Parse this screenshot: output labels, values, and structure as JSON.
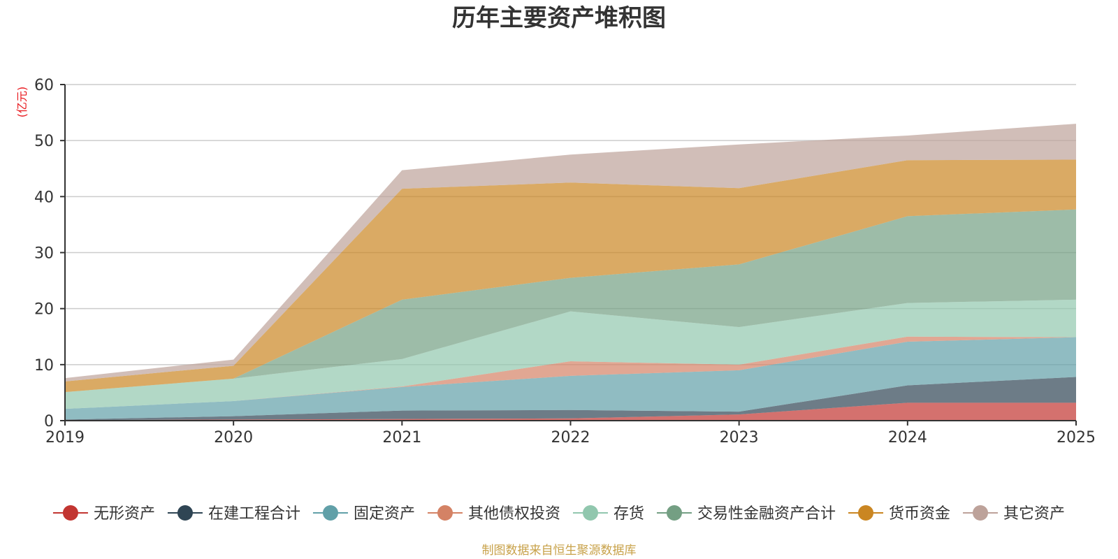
{
  "chart_data": {
    "type": "area",
    "stacked": true,
    "title": "历年主要资产堆积图",
    "ylabel": "(亿元)",
    "xlabel": "",
    "categories": [
      "2019",
      "2020",
      "2021",
      "2022",
      "2023",
      "2024",
      "2025"
    ],
    "ylim": [
      0,
      60
    ],
    "yticks": [
      0,
      10,
      20,
      30,
      40,
      50,
      60
    ],
    "grid": true,
    "legend_position": "bottom",
    "series": [
      {
        "name": "无形资产",
        "color": "#c23531",
        "values": [
          0.1,
          0.2,
          0.3,
          0.4,
          1.1,
          3.2,
          3.2
        ]
      },
      {
        "name": "在建工程合计",
        "color": "#2f4554",
        "values": [
          0.1,
          0.6,
          1.5,
          1.5,
          0.5,
          3.1,
          4.6
        ]
      },
      {
        "name": "固定资产",
        "color": "#61a0a8",
        "values": [
          1.9,
          2.7,
          4.2,
          6.1,
          7.4,
          7.8,
          7.1
        ]
      },
      {
        "name": "其他债权投资",
        "color": "#d48265",
        "values": [
          0.0,
          0.0,
          0.1,
          2.6,
          1.0,
          0.9,
          0.0
        ]
      },
      {
        "name": "存货",
        "color": "#91c7ae",
        "values": [
          3.0,
          4.0,
          4.9,
          8.9,
          6.7,
          6.0,
          6.7
        ]
      },
      {
        "name": "交易性金融资产合计",
        "color": "#749f83",
        "values": [
          0.0,
          0.0,
          10.6,
          6.0,
          11.2,
          15.5,
          16.1
        ]
      },
      {
        "name": "货币资金",
        "color": "#ca8622",
        "values": [
          1.9,
          2.3,
          19.8,
          17.0,
          13.6,
          10.0,
          8.9
        ]
      },
      {
        "name": "其它资产",
        "color": "#bda29a",
        "values": [
          0.6,
          1.1,
          3.3,
          5.0,
          7.8,
          4.4,
          6.4
        ]
      }
    ]
  },
  "colors": {
    "title": "#333333",
    "unit": "#e8161b",
    "axis": "#333333",
    "grid": "#cccccc",
    "source": "#c8a24a"
  },
  "source_note": "制图数据来自恒生聚源数据库"
}
